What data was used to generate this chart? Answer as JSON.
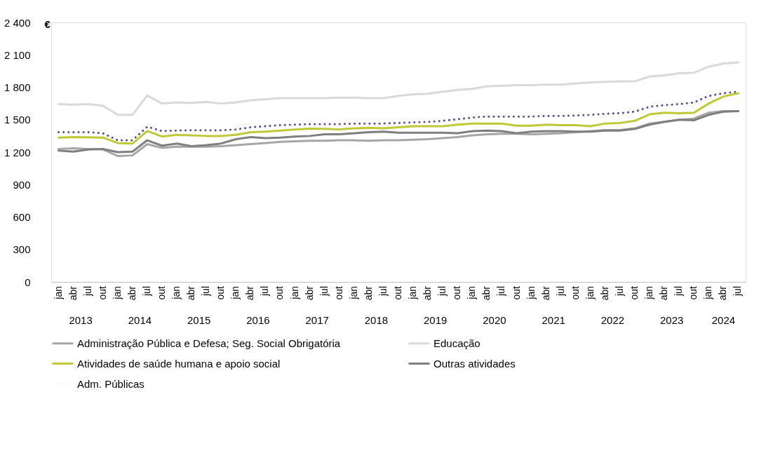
{
  "chart_data": {
    "type": "line",
    "ylabel": "€",
    "categories": [
      "jan",
      "abr",
      "jul",
      "out",
      "jan",
      "abr",
      "jul",
      "out",
      "jan",
      "abr",
      "jul",
      "out",
      "jan",
      "abr",
      "jul",
      "out",
      "jan",
      "abr",
      "jul",
      "out",
      "jan",
      "abr",
      "jul",
      "out",
      "jan",
      "abr",
      "jul",
      "out",
      "jan",
      "abr",
      "jul",
      "out",
      "jan",
      "abr",
      "jul",
      "out",
      "jan",
      "abr",
      "jul",
      "out",
      "jan",
      "abr",
      "jul",
      "out",
      "jan",
      "abr",
      "jul"
    ],
    "annotations": [
      "2013",
      "2014",
      "2015",
      "2016",
      "2017",
      "2018",
      "2019",
      "2020",
      "2021",
      "2022",
      "2023",
      "2024"
    ],
    "ylim": [
      0,
      2400
    ],
    "yticks": [
      0,
      300,
      600,
      900,
      {
        "value": 1200,
        "label": "1 200"
      },
      {
        "value": 1500,
        "label": "1 500"
      },
      {
        "value": 1800,
        "label": "1 800"
      },
      {
        "value": 2100,
        "label": "2 100"
      },
      {
        "value": 2400,
        "label": "2 400"
      }
    ],
    "grid": false,
    "legend": "bottom",
    "series": [
      {
        "name": "Administração Pública e Defesa; Seg. Social Obrigatória",
        "color": "#a6a6a6",
        "values": [
          1230,
          1235,
          1230,
          1225,
          1165,
          1170,
          1275,
          1240,
          1250,
          1250,
          1250,
          1255,
          1265,
          1275,
          1285,
          1295,
          1300,
          1305,
          1305,
          1310,
          1310,
          1305,
          1310,
          1310,
          1315,
          1320,
          1330,
          1340,
          1355,
          1365,
          1370,
          1370,
          1365,
          1370,
          1375,
          1385,
          1395,
          1405,
          1405,
          1420,
          1465,
          1480,
          1500,
          1510,
          1565,
          1580,
          1580
        ]
      },
      {
        "name": "Educação",
        "color": "#d9d9d9",
        "values": [
          1645,
          1640,
          1645,
          1630,
          1545,
          1545,
          1725,
          1650,
          1660,
          1655,
          1665,
          1650,
          1660,
          1680,
          1690,
          1700,
          1700,
          1700,
          1700,
          1705,
          1705,
          1700,
          1700,
          1720,
          1735,
          1740,
          1760,
          1775,
          1785,
          1810,
          1815,
          1820,
          1820,
          1825,
          1825,
          1835,
          1845,
          1850,
          1855,
          1855,
          1900,
          1910,
          1930,
          1935,
          1990,
          2020,
          2030
        ]
      },
      {
        "name": "Atividades de saúde humana e apoio social",
        "color": "#c0c935",
        "values": [
          1335,
          1340,
          1338,
          1335,
          1285,
          1280,
          1395,
          1345,
          1360,
          1355,
          1350,
          1350,
          1360,
          1385,
          1390,
          1400,
          1410,
          1418,
          1415,
          1410,
          1420,
          1425,
          1420,
          1430,
          1440,
          1440,
          1440,
          1455,
          1465,
          1465,
          1465,
          1445,
          1445,
          1455,
          1450,
          1450,
          1440,
          1465,
          1470,
          1490,
          1550,
          1565,
          1560,
          1565,
          1650,
          1715,
          1745
        ]
      },
      {
        "name": "Outras atividades",
        "color": "#7f7f7f",
        "values": [
          1215,
          1205,
          1225,
          1230,
          1200,
          1205,
          1310,
          1260,
          1280,
          1255,
          1265,
          1280,
          1320,
          1340,
          1330,
          1335,
          1345,
          1350,
          1365,
          1365,
          1375,
          1385,
          1390,
          1380,
          1380,
          1380,
          1380,
          1375,
          1395,
          1400,
          1395,
          1375,
          1390,
          1395,
          1395,
          1390,
          1390,
          1400,
          1400,
          1415,
          1455,
          1480,
          1500,
          1495,
          1545,
          1575,
          1580
        ]
      },
      {
        "name": "Adm. Públicas",
        "color": "#5f4b8b",
        "line_style": "dotted",
        "values": [
          1385,
          1385,
          1385,
          1375,
          1310,
          1310,
          1435,
          1395,
          1400,
          1403,
          1403,
          1403,
          1410,
          1430,
          1440,
          1450,
          1455,
          1460,
          1460,
          1460,
          1465,
          1465,
          1465,
          1470,
          1475,
          1480,
          1490,
          1505,
          1520,
          1530,
          1530,
          1530,
          1530,
          1535,
          1535,
          1540,
          1545,
          1555,
          1560,
          1575,
          1620,
          1635,
          1645,
          1660,
          1720,
          1745,
          1760
        ]
      }
    ]
  }
}
